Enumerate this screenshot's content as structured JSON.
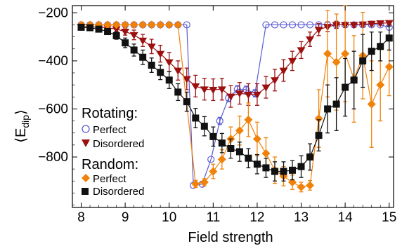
{
  "chart_data": {
    "type": "scatter",
    "xlabel": "Field strength",
    "ylabel_main": "⟨E",
    "ylabel_sub": "dip",
    "ylabel_close": "⟩",
    "xlim": [
      7.8,
      15.1
    ],
    "ylim": [
      -1010,
      -170
    ],
    "xticks": [
      8,
      9,
      10,
      11,
      12,
      13,
      14,
      15
    ],
    "yticks": [
      -200,
      -400,
      -600,
      -800
    ],
    "xtick_labels": [
      "8",
      "9",
      "10",
      "11",
      "12",
      "13",
      "14",
      "15"
    ],
    "ytick_labels": [
      "−200",
      "−400",
      "−600",
      "−800"
    ],
    "legend": {
      "groups": [
        {
          "title": "Rotating:",
          "entries": [
            "Perfect",
            "Disordered"
          ]
        },
        {
          "title": "Random:",
          "entries": [
            "Perfect",
            "Disordered"
          ]
        }
      ]
    },
    "series": [
      {
        "name": "Rotating Perfect",
        "group": "Rotating",
        "color": "#5a5ad6",
        "marker": "open-circle",
        "x": [
          8.0,
          8.2,
          8.4,
          8.6,
          8.8,
          9.0,
          9.2,
          9.4,
          9.6,
          9.8,
          10.0,
          10.2,
          10.4,
          10.55,
          10.75,
          10.95,
          11.15,
          11.35,
          11.55,
          11.75,
          11.95,
          12.2,
          12.4,
          12.6,
          12.8,
          13.0,
          13.2,
          13.4,
          13.6,
          13.8,
          14.0,
          14.2,
          14.4,
          14.6,
          14.8,
          15.0
        ],
        "y": [
          -250,
          -250,
          -250,
          -250,
          -250,
          -250,
          -250,
          -250,
          -250,
          -250,
          -250,
          -250,
          -250,
          -918,
          -913,
          -810,
          -650,
          -555,
          -518,
          -520,
          -535,
          -250,
          -250,
          -250,
          -250,
          -250,
          -250,
          -250,
          -250,
          -250,
          -250,
          -250,
          -250,
          -250,
          -250,
          -260
        ],
        "err": [
          0,
          0,
          0,
          0,
          0,
          0,
          0,
          0,
          0,
          0,
          0,
          0,
          0,
          0,
          0,
          0,
          15,
          15,
          15,
          15,
          15,
          0,
          0,
          0,
          0,
          0,
          0,
          0,
          0,
          0,
          0,
          0,
          0,
          0,
          0,
          0
        ]
      },
      {
        "name": "Rotating Disordered",
        "group": "Rotating",
        "color": "#9c1010",
        "marker": "down-triangle",
        "x": [
          8.0,
          8.2,
          8.4,
          8.6,
          8.8,
          9.0,
          9.2,
          9.4,
          9.6,
          9.8,
          10.0,
          10.2,
          10.4,
          10.6,
          10.8,
          11.0,
          11.2,
          11.4,
          11.6,
          11.8,
          12.0,
          12.2,
          12.4,
          12.6,
          12.8,
          13.0,
          13.2,
          13.4,
          13.6,
          13.8,
          14.0,
          14.2,
          14.4,
          14.6,
          14.8,
          15.0
        ],
        "y": [
          -258,
          -258,
          -260,
          -262,
          -268,
          -278,
          -292,
          -315,
          -340,
          -370,
          -405,
          -440,
          -475,
          -505,
          -518,
          -520,
          -518,
          -548,
          -535,
          -540,
          -540,
          -510,
          -480,
          -440,
          -400,
          -355,
          -310,
          -270,
          -258,
          -250,
          -250,
          -250,
          -248,
          -245,
          -243,
          -242
        ],
        "err": [
          0,
          0,
          0,
          0,
          10,
          15,
          20,
          25,
          30,
          35,
          40,
          40,
          45,
          45,
          45,
          45,
          45,
          45,
          45,
          45,
          45,
          45,
          45,
          45,
          40,
          35,
          30,
          25,
          20,
          15,
          10,
          10,
          10,
          10,
          8,
          8
        ]
      },
      {
        "name": "Random Perfect",
        "group": "Random",
        "color": "#f0820a",
        "marker": "diamond",
        "x": [
          8.0,
          8.2,
          8.4,
          8.6,
          8.8,
          9.0,
          9.2,
          9.4,
          9.6,
          9.8,
          10.0,
          10.2,
          10.6,
          10.8,
          11.0,
          11.2,
          11.4,
          11.6,
          11.8,
          12.0,
          12.2,
          12.4,
          12.6,
          12.8,
          13.0,
          13.2,
          13.4,
          13.6,
          13.8,
          14.0,
          14.2,
          14.4,
          14.6,
          14.8,
          15.0
        ],
        "y": [
          -250,
          -250,
          -250,
          -250,
          -250,
          -250,
          -250,
          -250,
          -250,
          -250,
          -250,
          -250,
          -912,
          -905,
          -860,
          -810,
          -725,
          -690,
          -645,
          -725,
          -785,
          -855,
          -880,
          -905,
          -925,
          -918,
          -640,
          -370,
          -405,
          -370,
          -475,
          -378,
          -580,
          -500,
          -425
        ],
        "err": [
          0,
          0,
          0,
          0,
          0,
          0,
          0,
          0,
          0,
          0,
          0,
          0,
          15,
          15,
          30,
          40,
          50,
          60,
          70,
          70,
          65,
          55,
          40,
          30,
          20,
          20,
          120,
          180,
          200,
          200,
          180,
          180,
          180,
          150,
          120
        ]
      },
      {
        "name": "Random Disordered",
        "group": "Random",
        "color": "#111111",
        "marker": "square",
        "x": [
          8.0,
          8.2,
          8.4,
          8.6,
          8.8,
          9.0,
          9.2,
          9.4,
          9.6,
          9.8,
          10.0,
          10.2,
          10.4,
          10.6,
          10.8,
          11.0,
          11.2,
          11.4,
          11.6,
          11.8,
          12.0,
          12.2,
          12.4,
          12.6,
          12.8,
          13.0,
          13.2,
          13.4,
          13.6,
          13.8,
          14.0,
          14.2,
          14.4,
          14.6,
          14.8,
          15.0
        ],
        "y": [
          -260,
          -262,
          -268,
          -278,
          -295,
          -325,
          -355,
          -385,
          -418,
          -448,
          -480,
          -530,
          -570,
          -638,
          -672,
          -715,
          -742,
          -765,
          -778,
          -805,
          -830,
          -845,
          -860,
          -860,
          -855,
          -840,
          -800,
          -710,
          -600,
          -580,
          -510,
          -480,
          -400,
          -360,
          -340,
          -305
        ],
        "err": [
          0,
          0,
          0,
          10,
          15,
          20,
          25,
          30,
          30,
          30,
          35,
          35,
          40,
          40,
          40,
          40,
          40,
          40,
          40,
          40,
          40,
          40,
          40,
          40,
          40,
          45,
          55,
          65,
          100,
          110,
          120,
          120,
          110,
          80,
          60,
          50
        ]
      }
    ]
  }
}
